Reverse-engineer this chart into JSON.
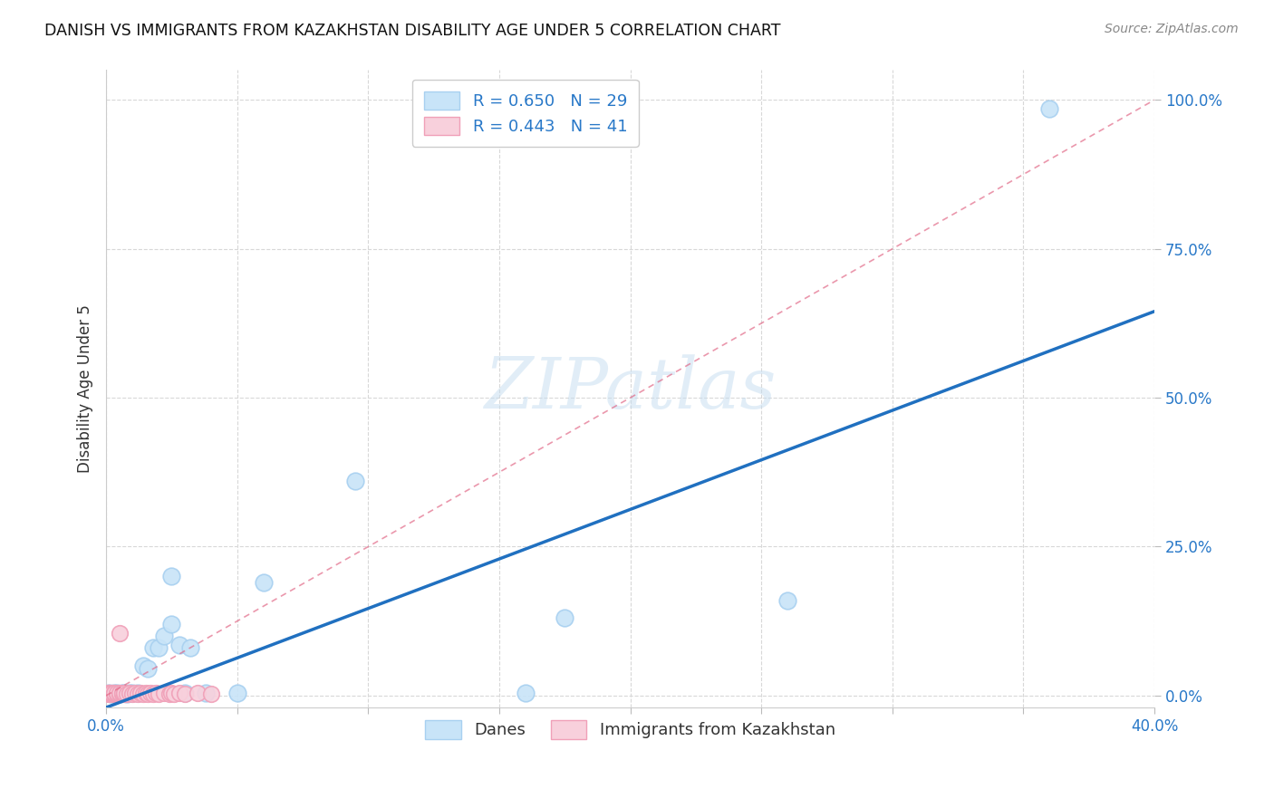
{
  "title": "DANISH VS IMMIGRANTS FROM KAZAKHSTAN DISABILITY AGE UNDER 5 CORRELATION CHART",
  "source": "Source: ZipAtlas.com",
  "ylabel": "Disability Age Under 5",
  "ytick_labels": [
    "0.0%",
    "25.0%",
    "50.0%",
    "75.0%",
    "100.0%"
  ],
  "ytick_values": [
    0,
    0.25,
    0.5,
    0.75,
    1.0
  ],
  "xtick_values": [
    0.0,
    0.05,
    0.1,
    0.15,
    0.2,
    0.25,
    0.3,
    0.35,
    0.4
  ],
  "xlim": [
    0,
    0.4
  ],
  "ylim": [
    -0.02,
    1.05
  ],
  "danes_R": 0.65,
  "danes_N": 29,
  "immigrants_R": 0.443,
  "immigrants_N": 41,
  "legend_label_danes": "Danes",
  "legend_label_immigrants": "Immigrants from Kazakhstan",
  "danes_color": "#a8d0f0",
  "danes_fill_color": "#c8e4f8",
  "danes_line_color": "#2070c0",
  "immigrants_color": "#f0a0b8",
  "immigrants_fill_color": "#f8d0dc",
  "immigrants_line_color": "#e06080",
  "watermark_text": "ZIPatlas",
  "danes_x": [
    0.001,
    0.002,
    0.003,
    0.004,
    0.005,
    0.006,
    0.007,
    0.008,
    0.009,
    0.01,
    0.012,
    0.014,
    0.016,
    0.018,
    0.02,
    0.022,
    0.025,
    0.025,
    0.028,
    0.03,
    0.032,
    0.038,
    0.05,
    0.06,
    0.095,
    0.16,
    0.175,
    0.26,
    0.36
  ],
  "danes_y": [
    0.004,
    0.003,
    0.005,
    0.004,
    0.003,
    0.004,
    0.005,
    0.003,
    0.004,
    0.005,
    0.004,
    0.05,
    0.045,
    0.08,
    0.08,
    0.1,
    0.12,
    0.2,
    0.085,
    0.005,
    0.08,
    0.005,
    0.005,
    0.19,
    0.36,
    0.005,
    0.13,
    0.16,
    0.985
  ],
  "immigrants_x": [
    0.001,
    0.001,
    0.001,
    0.001,
    0.001,
    0.002,
    0.002,
    0.002,
    0.003,
    0.003,
    0.003,
    0.004,
    0.004,
    0.005,
    0.005,
    0.006,
    0.006,
    0.007,
    0.007,
    0.008,
    0.009,
    0.01,
    0.011,
    0.012,
    0.013,
    0.014,
    0.015,
    0.016,
    0.017,
    0.018,
    0.019,
    0.02,
    0.022,
    0.024,
    0.025,
    0.026,
    0.028,
    0.03,
    0.035,
    0.04,
    0.005
  ],
  "immigrants_y": [
    0.003,
    0.004,
    0.005,
    0.003,
    0.004,
    0.003,
    0.005,
    0.004,
    0.003,
    0.004,
    0.005,
    0.003,
    0.004,
    0.003,
    0.005,
    0.003,
    0.004,
    0.003,
    0.004,
    0.003,
    0.004,
    0.003,
    0.004,
    0.003,
    0.004,
    0.003,
    0.004,
    0.003,
    0.004,
    0.003,
    0.004,
    0.003,
    0.004,
    0.003,
    0.004,
    0.003,
    0.004,
    0.003,
    0.004,
    0.003,
    0.105
  ],
  "danes_line_x0": 0.0,
  "danes_line_y0": -0.02,
  "danes_line_x1": 0.4,
  "danes_line_y1": 0.645,
  "imm_line_x0": 0.0,
  "imm_line_y0": 0.0,
  "imm_line_x1": 0.4,
  "imm_line_y1": 1.0
}
